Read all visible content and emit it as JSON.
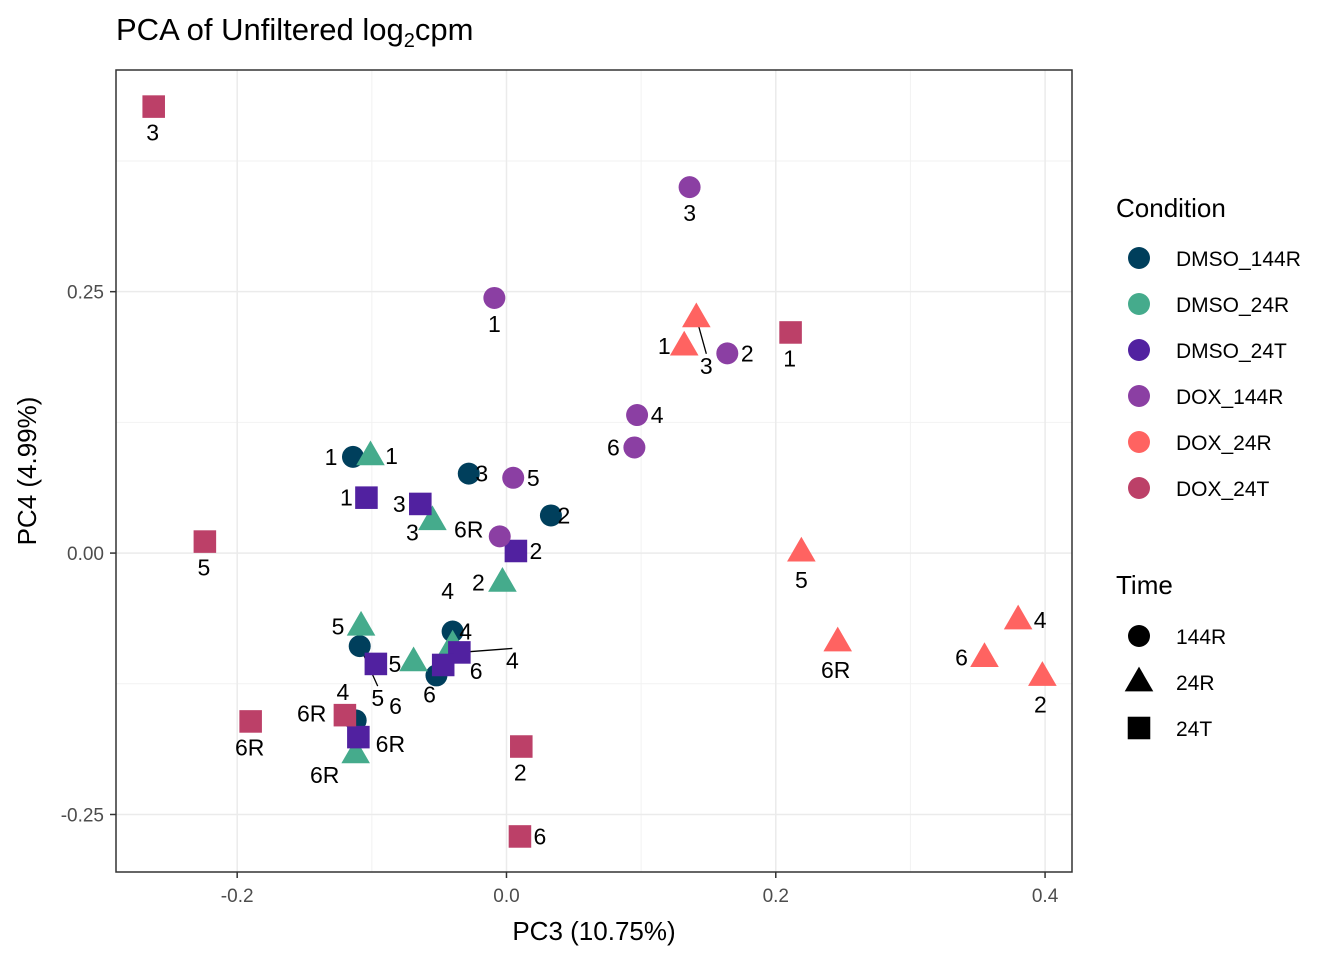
{
  "chart_data": {
    "type": "scatter",
    "title": "PCA of Unfiltered log",
    "title_subscript": "2",
    "title_suffix": "cpm",
    "xlabel": "PC3 (10.75%)",
    "ylabel": "PC4 (4.99%)",
    "xlim": [
      -0.29,
      0.42
    ],
    "ylim": [
      -0.305,
      0.462
    ],
    "grid": true,
    "x_ticks": [
      -0.2,
      0.0,
      0.2,
      0.4
    ],
    "x_tick_labels": [
      "-0.2",
      "0.0",
      "0.2",
      "0.4"
    ],
    "y_ticks": [
      -0.25,
      0.0,
      0.25
    ],
    "y_tick_labels": [
      "-0.25",
      "0.00",
      "0.25"
    ],
    "colors": {
      "DMSO_144R": "#003f5c",
      "DMSO_24R": "#45ab8c",
      "DMSO_24T": "#5121a0",
      "DOX_144R": "#8b3fa3",
      "DOX_24R": "#ff6361",
      "DOX_24T": "#bc4068"
    },
    "legend": {
      "condition_title": "Condition",
      "conditions": [
        "DMSO_144R",
        "DMSO_24R",
        "DMSO_24T",
        "DOX_144R",
        "DOX_24R",
        "DOX_24T"
      ],
      "time_title": "Time",
      "times": [
        {
          "label": "144R",
          "shape": "circle"
        },
        {
          "label": "24R",
          "shape": "triangle"
        },
        {
          "label": "24T",
          "shape": "square"
        }
      ]
    },
    "series": [
      {
        "name": "DMSO_144R",
        "shape": "circle",
        "points": [
          {
            "x": -0.114,
            "y": 0.092,
            "label": "1"
          },
          {
            "x": 0.033,
            "y": 0.036,
            "label": "2"
          },
          {
            "x": -0.028,
            "y": 0.076,
            "label": "3"
          },
          {
            "x": -0.04,
            "y": -0.075,
            "label": "4"
          },
          {
            "x": -0.109,
            "y": -0.089,
            "label": "5"
          },
          {
            "x": -0.052,
            "y": -0.117,
            "label": "6"
          },
          {
            "x": -0.112,
            "y": -0.16,
            "label": "6R"
          }
        ]
      },
      {
        "name": "DMSO_24R",
        "shape": "triangle",
        "points": [
          {
            "x": -0.101,
            "y": 0.093,
            "label": "1"
          },
          {
            "x": -0.003,
            "y": -0.028,
            "label": "2"
          },
          {
            "x": -0.055,
            "y": 0.031,
            "label": "3"
          },
          {
            "x": -0.04,
            "y": -0.088,
            "label": "4"
          },
          {
            "x": -0.108,
            "y": -0.07,
            "label": "5"
          },
          {
            "x": -0.069,
            "y": -0.104,
            "label": "6"
          },
          {
            "x": -0.112,
            "y": -0.192,
            "label": "6R"
          }
        ]
      },
      {
        "name": "DMSO_24T",
        "shape": "square",
        "points": [
          {
            "x": -0.104,
            "y": 0.053,
            "label": "1"
          },
          {
            "x": 0.007,
            "y": 0.002,
            "label": "2"
          },
          {
            "x": -0.064,
            "y": 0.047,
            "label": "3"
          },
          {
            "x": -0.035,
            "y": -0.095,
            "label": "4"
          },
          {
            "x": -0.097,
            "y": -0.106,
            "label": "5"
          },
          {
            "x": -0.047,
            "y": -0.107,
            "label": "6"
          },
          {
            "x": -0.11,
            "y": -0.176,
            "label": "6R"
          }
        ]
      },
      {
        "name": "DOX_144R",
        "shape": "circle",
        "points": [
          {
            "x": -0.009,
            "y": 0.244,
            "label": "1"
          },
          {
            "x": 0.164,
            "y": 0.191,
            "label": "2"
          },
          {
            "x": 0.136,
            "y": 0.35,
            "label": "3"
          },
          {
            "x": 0.097,
            "y": 0.132,
            "label": "4"
          },
          {
            "x": 0.005,
            "y": 0.072,
            "label": "5"
          },
          {
            "x": 0.095,
            "y": 0.101,
            "label": "6"
          },
          {
            "x": -0.005,
            "y": 0.016,
            "label": "6R"
          }
        ]
      },
      {
        "name": "DOX_24R",
        "shape": "triangle",
        "points": [
          {
            "x": 0.132,
            "y": 0.198,
            "label": "1"
          },
          {
            "x": 0.398,
            "y": -0.118,
            "label": "2"
          },
          {
            "x": 0.141,
            "y": 0.225,
            "label": "3"
          },
          {
            "x": 0.38,
            "y": -0.064,
            "label": "4"
          },
          {
            "x": 0.219,
            "y": 0.001,
            "label": "5"
          },
          {
            "x": 0.355,
            "y": -0.1,
            "label": "6"
          },
          {
            "x": 0.246,
            "y": -0.085,
            "label": "6R"
          }
        ]
      },
      {
        "name": "DOX_24T",
        "shape": "square",
        "points": [
          {
            "x": 0.211,
            "y": 0.211,
            "label": "1"
          },
          {
            "x": 0.011,
            "y": -0.185,
            "label": "2"
          },
          {
            "x": -0.262,
            "y": 0.427,
            "label": "3"
          },
          {
            "x": -0.12,
            "y": -0.155,
            "label": "4"
          },
          {
            "x": -0.224,
            "y": 0.011,
            "label": "5"
          },
          {
            "x": 0.01,
            "y": -0.271,
            "label": "6"
          },
          {
            "x": -0.19,
            "y": -0.161,
            "label": "6R"
          }
        ]
      }
    ]
  }
}
